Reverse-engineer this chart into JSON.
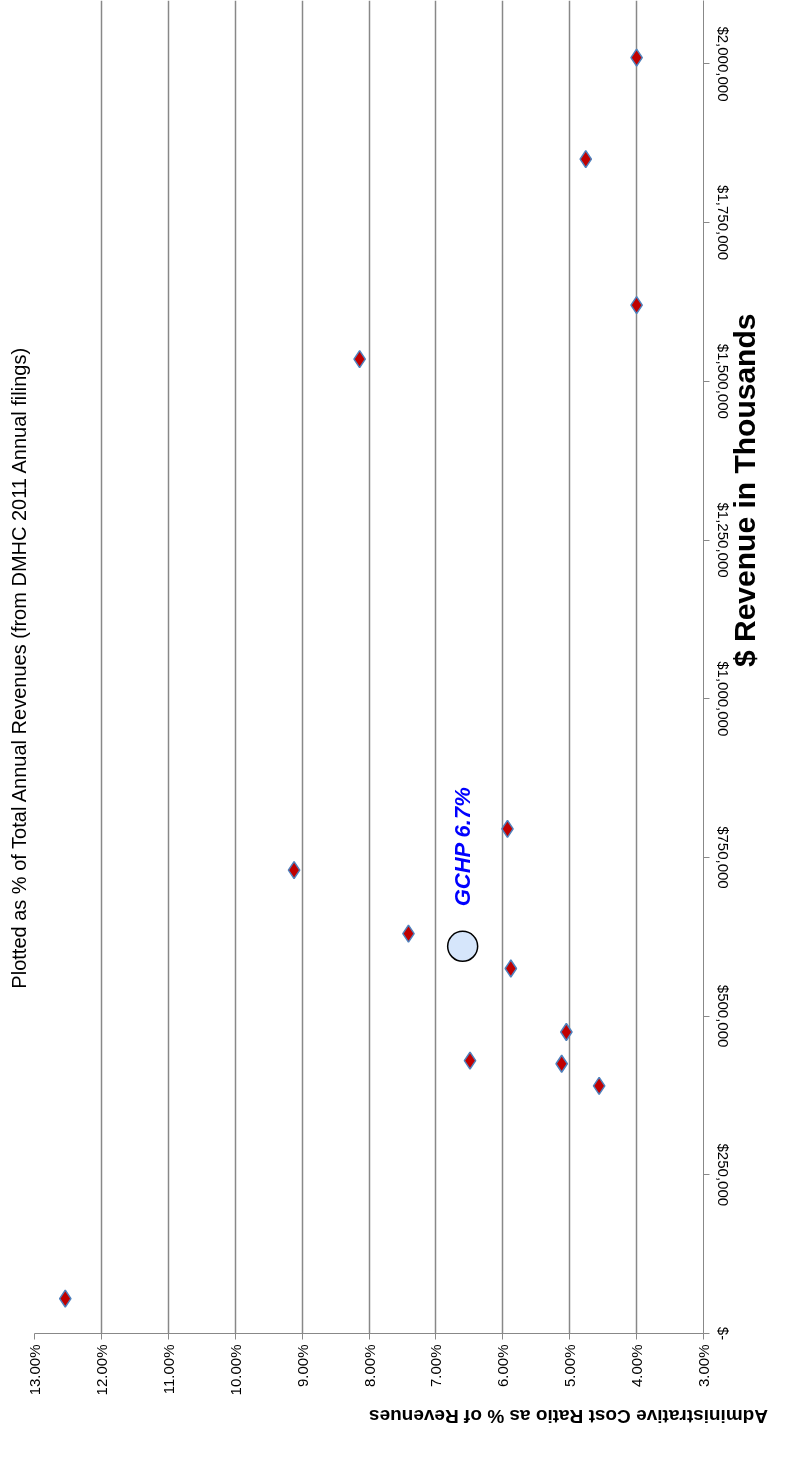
{
  "chart_data": {
    "type": "scatter",
    "title": "Plotted as % of Total Annual Revenues (from DMHC 2011 Annual filings)",
    "xlabel": "Administrative Cost Ratio as % of Revenues",
    "ylabel": "$ Revenue in Thousands",
    "x": [
      12.54,
      4.56,
      5.12,
      6.49,
      5.05,
      5.88,
      7.41,
      9.12,
      5.93,
      8.14,
      4.0,
      4.76,
      4.0
    ],
    "series": [
      {
        "color": "#c00000",
        "values": [
          55000,
          390000,
          425000,
          430000,
          475000,
          575000,
          630000,
          730000,
          795000,
          1535000,
          1620000,
          1850000,
          2010000
        ]
      },
      {
        "name": "GCHP 6.7%",
        "color": "#d6e6fb",
        "marker": "circle",
        "x": [
          6.6
        ],
        "values": [
          610000
        ]
      }
    ],
    "xlim": [
      13,
      3
    ],
    "xticks": [
      {
        "value": 3,
        "label": "3.00%"
      },
      {
        "value": 4,
        "label": "4.00%"
      },
      {
        "value": 5,
        "label": "5.00%"
      },
      {
        "value": 6,
        "label": "6.00%"
      },
      {
        "value": 7,
        "label": "7.00%"
      },
      {
        "value": 8,
        "label": "8.00%"
      },
      {
        "value": 9,
        "label": "9.00%"
      },
      {
        "value": 10,
        "label": "10.00%"
      },
      {
        "value": 11,
        "label": "11.00%"
      },
      {
        "value": 12,
        "label": "12.00%"
      },
      {
        "value": 13,
        "label": "13.00%"
      }
    ],
    "ylim": [
      0,
      2100000
    ],
    "yticks": [
      {
        "value": 0,
        "label": "$-"
      },
      {
        "value": 250000,
        "label": "$250,000"
      },
      {
        "value": 500000,
        "label": "$500,000"
      },
      {
        "value": 750000,
        "label": "$750,000"
      },
      {
        "value": 1000000,
        "label": "$1,000,000"
      },
      {
        "value": 1250000,
        "label": "$1,250,000"
      },
      {
        "value": 1500000,
        "label": "$1,500,000"
      },
      {
        "value": 1750000,
        "label": "$1,750,000"
      },
      {
        "value": 2000000,
        "label": "$2,000,000"
      }
    ],
    "grid": "x",
    "marker": "diamond"
  }
}
